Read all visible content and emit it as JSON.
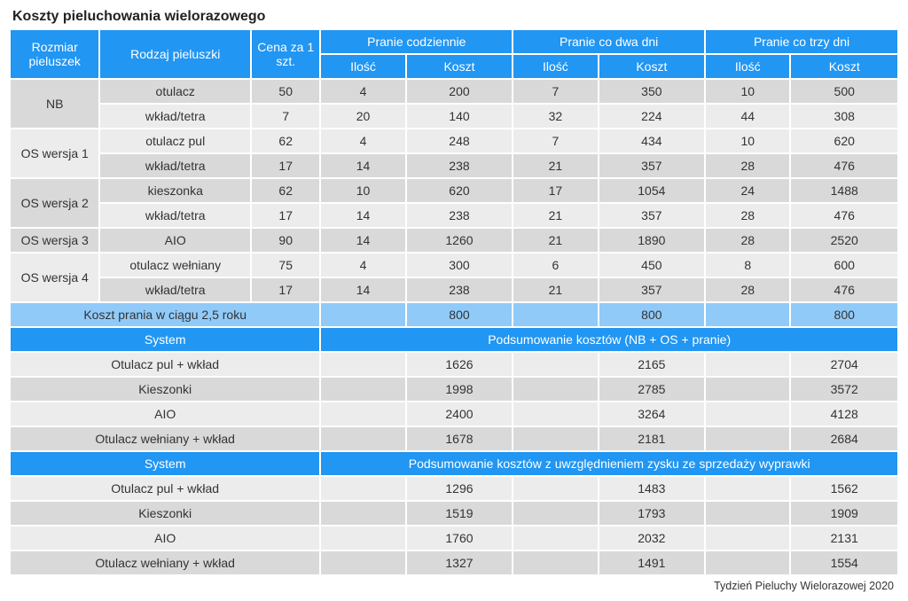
{
  "title": "Koszty pieluchowania wielorazowego",
  "footer": "Tydzień Pieluchy Wielorazowej 2020",
  "header": {
    "col_size": "Rozmiar pieluszek",
    "col_type": "Rodzaj pieluszki",
    "col_price": "Cena za 1 szt.",
    "group_daily": "Pranie codziennie",
    "group_2days": "Pranie co dwa dni",
    "group_3days": "Pranie co trzy dni",
    "sub_qty": "Ilość",
    "sub_cost": "Koszt"
  },
  "rows": [
    {
      "size": "NB",
      "type": "otulacz",
      "price": "50",
      "d_qty": "4",
      "d_cost": "200",
      "t_qty": "7",
      "t_cost": "350",
      "r_qty": "10",
      "r_cost": "500"
    },
    {
      "type": "wkład/tetra",
      "price": "7",
      "d_qty": "20",
      "d_cost": "140",
      "t_qty": "32",
      "t_cost": "224",
      "r_qty": "44",
      "r_cost": "308"
    },
    {
      "size": "OS wersja 1",
      "type": "otulacz pul",
      "price": "62",
      "d_qty": "4",
      "d_cost": "248",
      "t_qty": "7",
      "t_cost": "434",
      "r_qty": "10",
      "r_cost": "620"
    },
    {
      "type": "wkład/tetra",
      "price": "17",
      "d_qty": "14",
      "d_cost": "238",
      "t_qty": "21",
      "t_cost": "357",
      "r_qty": "28",
      "r_cost": "476"
    },
    {
      "size": "OS wersja 2",
      "type": "kieszonka",
      "price": "62",
      "d_qty": "10",
      "d_cost": "620",
      "t_qty": "17",
      "t_cost": "1054",
      "r_qty": "24",
      "r_cost": "1488"
    },
    {
      "type": "wkład/tetra",
      "price": "17",
      "d_qty": "14",
      "d_cost": "238",
      "t_qty": "21",
      "t_cost": "357",
      "r_qty": "28",
      "r_cost": "476"
    },
    {
      "size": "OS wersja 3",
      "single": true,
      "type": "AIO",
      "price": "90",
      "d_qty": "14",
      "d_cost": "1260",
      "t_qty": "21",
      "t_cost": "1890",
      "r_qty": "28",
      "r_cost": "2520"
    },
    {
      "size": "OS wersja 4",
      "type": "otulacz wełniany",
      "price": "75",
      "d_qty": "4",
      "d_cost": "300",
      "t_qty": "6",
      "t_cost": "450",
      "r_qty": "8",
      "r_cost": "600"
    },
    {
      "type": "wkład/tetra",
      "price": "17",
      "d_qty": "14",
      "d_cost": "238",
      "t_qty": "21",
      "t_cost": "357",
      "r_qty": "28",
      "r_cost": "476"
    }
  ],
  "wash_row": {
    "label": "Koszt prania w ciągu 2,5 roku",
    "d": "800",
    "t": "800",
    "r": "800"
  },
  "summary1": {
    "system_label": "System",
    "header": "Podsumowanie kosztów (NB + OS + pranie)",
    "rows": [
      {
        "label": "Otulacz pul + wkład",
        "d": "1626",
        "t": "2165",
        "r": "2704"
      },
      {
        "label": "Kieszonki",
        "d": "1998",
        "t": "2785",
        "r": "3572"
      },
      {
        "label": "AIO",
        "d": "2400",
        "t": "3264",
        "r": "4128"
      },
      {
        "label": "Otulacz wełniany + wkład",
        "d": "1678",
        "t": "2181",
        "r": "2684"
      }
    ]
  },
  "summary2": {
    "system_label": "System",
    "header": "Podsumowanie kosztów z uwzględnieniem zysku ze sprzedaży wyprawki",
    "rows": [
      {
        "label": "Otulacz pul + wkład",
        "d": "1296",
        "t": "1483",
        "r": "1562"
      },
      {
        "label": "Kieszonki",
        "d": "1519",
        "t": "1793",
        "r": "1909"
      },
      {
        "label": "AIO",
        "d": "1760",
        "t": "2032",
        "r": "2131"
      },
      {
        "label": "Otulacz wełniany + wkład",
        "d": "1327",
        "t": "1491",
        "r": "1554"
      }
    ]
  },
  "colors": {
    "header_dark": "#2196f3",
    "header_light": "#90caf9",
    "row_a": "#ececec",
    "row_b": "#d9d9d9",
    "text": "#333333"
  }
}
